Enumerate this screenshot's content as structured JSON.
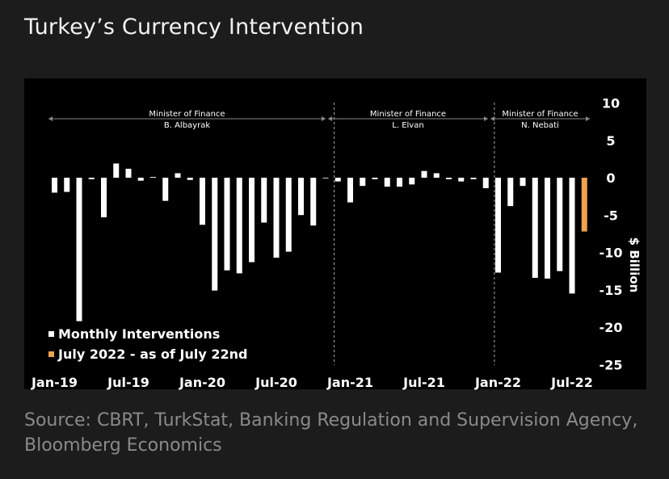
{
  "title": "Turkey’s Currency Intervention",
  "source": "Source: CBRT, TurkStat, Banking Regulation and Supervision Agency, Bloomberg Economics",
  "chart_data": {
    "type": "bar",
    "ylabel": "$ Billion",
    "ylim": [
      -25,
      10
    ],
    "yticks": [
      10,
      5,
      0,
      -5,
      -10,
      -15,
      -20,
      -25
    ],
    "x_tick_labels": [
      "Jan-19",
      "Jul-19",
      "Jan-20",
      "Jul-20",
      "Jan-21",
      "Jul-21",
      "Jan-22",
      "Jul-22"
    ],
    "x_tick_index": [
      0,
      6,
      12,
      18,
      24,
      30,
      36,
      42
    ],
    "categories": [
      "2019-01",
      "2019-02",
      "2019-03",
      "2019-04",
      "2019-05",
      "2019-06",
      "2019-07",
      "2019-08",
      "2019-09",
      "2019-10",
      "2019-11",
      "2019-12",
      "2020-01",
      "2020-02",
      "2020-03",
      "2020-04",
      "2020-05",
      "2020-06",
      "2020-07",
      "2020-08",
      "2020-09",
      "2020-10",
      "2020-11",
      "2020-12",
      "2021-01",
      "2021-02",
      "2021-03",
      "2021-04",
      "2021-05",
      "2021-06",
      "2021-07",
      "2021-08",
      "2021-09",
      "2021-10",
      "2021-11",
      "2021-12",
      "2022-01",
      "2022-02",
      "2022-03",
      "2022-04",
      "2022-05",
      "2022-06",
      "2022-07"
    ],
    "series": [
      {
        "name": "Monthly Interventions",
        "color": "#ffffff",
        "values": [
          -2.0,
          -1.9,
          -19.2,
          -0.2,
          -5.3,
          1.9,
          1.2,
          -0.4,
          0.1,
          -3.1,
          0.6,
          -0.3,
          -6.3,
          -15.1,
          -12.4,
          -12.8,
          -11.3,
          -6.0,
          -10.7,
          -9.9,
          -5.0,
          -6.4,
          0.0,
          -0.5,
          -3.3,
          -1.1,
          -0.2,
          -1.2,
          -1.2,
          -0.9,
          0.9,
          0.6,
          -0.2,
          -0.5,
          -0.2,
          -1.4,
          -12.7,
          -3.8,
          -1.1,
          -13.4,
          -13.5,
          -12.5,
          -15.5
        ]
      },
      {
        "name": "July 2022 - as of July 22nd",
        "color": "#f0a451",
        "category": "2022-07",
        "value": -7.2
      }
    ],
    "annotations": [
      {
        "label": "Minister of Finance",
        "name": "B. Albayrak",
        "from_index": 0,
        "to_index": 23
      },
      {
        "label": "Minister of Finance",
        "name": "L. Elvan",
        "from_index": 23,
        "to_index": 36
      },
      {
        "label": "Minister of Finance",
        "name": "N. Nebati",
        "from_index": 36,
        "to_index": 44
      }
    ],
    "legend_position": "bottom-left"
  }
}
